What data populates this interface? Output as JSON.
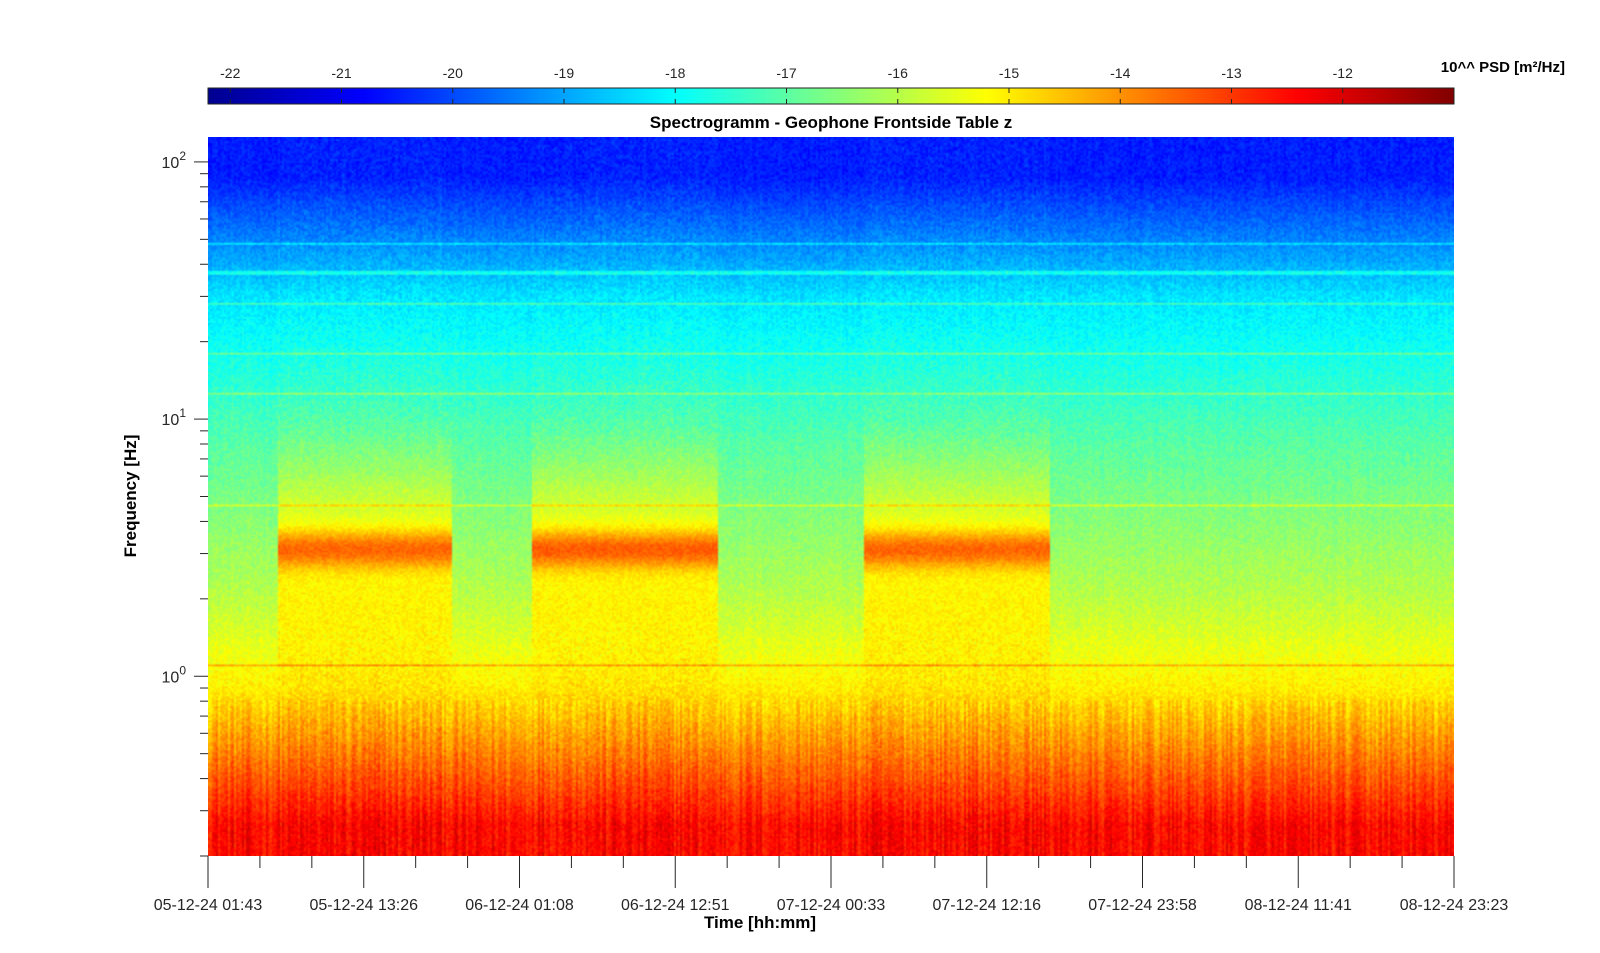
{
  "chart_data": {
    "type": "heatmap",
    "title": "Spectrogramm - Geophone Frontside Table z",
    "xlabel": "Time [hh:mm]",
    "ylabel": "Frequency [Hz]",
    "colorbar": {
      "label": "10^^ PSD [m²/Hz]",
      "range": [
        -22.2,
        -11.0
      ],
      "ticks": [
        -22,
        -21,
        -20,
        -19,
        -18,
        -17,
        -16,
        -15,
        -14,
        -13,
        -12
      ],
      "colormap": "jet"
    },
    "x_tick_labels": [
      "05-12-24 01:43",
      "05-12-24 13:26",
      "06-12-24 01:08",
      "06-12-24 12:51",
      "07-12-24 00:33",
      "07-12-24 12:16",
      "07-12-24 23:58",
      "08-12-24 11:41",
      "08-12-24 23:23"
    ],
    "xlim": [
      "05-12-24 01:43",
      "08-12-24 23:23"
    ],
    "y_scale": "log",
    "ylim": [
      0.2,
      125
    ],
    "y_tick_labels": [
      {
        "base": "10",
        "exp": "0",
        "value": 1
      },
      {
        "base": "10",
        "exp": "1",
        "value": 10
      },
      {
        "base": "10",
        "exp": "2",
        "value": 100
      }
    ],
    "features": {
      "frequency_bands_log10_psd": [
        {
          "freq_range_hz": [
            0.2,
            0.35
          ],
          "log10_psd": -12.5
        },
        {
          "freq_range_hz": [
            0.35,
            0.7
          ],
          "log10_psd": -13.8
        },
        {
          "freq_range_hz": [
            0.7,
            1.1
          ],
          "log10_psd": -15.0
        },
        {
          "freq_range_hz": [
            1.1,
            4.0
          ],
          "log10_psd": -16.0
        },
        {
          "freq_range_hz": [
            4.0,
            15
          ],
          "log10_psd": -17.0
        },
        {
          "freq_range_hz": [
            15,
            60
          ],
          "log10_psd": -18.3
        },
        {
          "freq_range_hz": [
            60,
            125
          ],
          "log10_psd": -20.5
        }
      ],
      "narrowband_lines_hz": [
        1.1,
        4.6,
        12.6,
        18,
        28,
        37,
        48
      ],
      "activity_periods": [
        {
          "start": "05-12-24 07:00",
          "end": "05-12-24 20:00",
          "peak_freq_hz": 3.1,
          "log10_psd": -13.5
        },
        {
          "start": "06-12-24 02:00",
          "end": "06-12-24 16:00",
          "peak_freq_hz": 3.1,
          "log10_psd": -13.4
        },
        {
          "start": "07-12-24 03:00",
          "end": "07-12-24 17:00",
          "peak_freq_hz": 3.1,
          "log10_psd": -13.5
        }
      ]
    }
  }
}
